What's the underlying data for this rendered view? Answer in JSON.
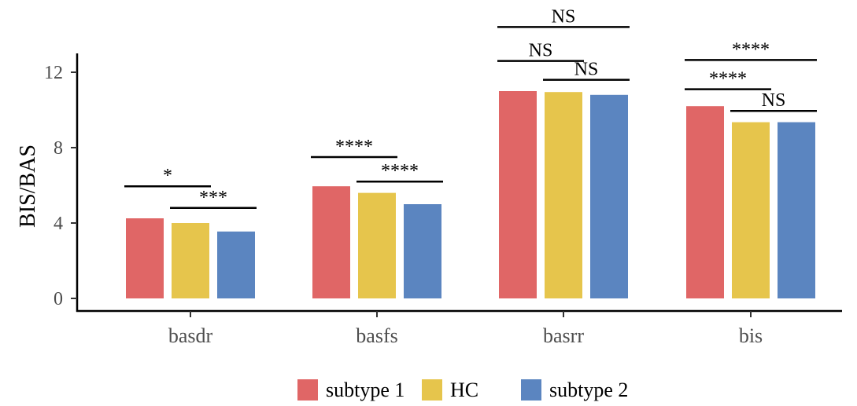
{
  "chart_data": {
    "type": "bar",
    "title": "",
    "xlabel": "",
    "ylabel": "BIS/BAS",
    "ylim": [
      0,
      13
    ],
    "yticks": [
      0,
      4,
      8,
      12
    ],
    "grid": false,
    "legend_position": "bottom",
    "categories": [
      "basdr",
      "basfs",
      "basrr",
      "bis"
    ],
    "series": [
      {
        "name": "subtype 1",
        "color": "#E06666",
        "values": [
          4.25,
          5.95,
          11.0,
          10.2
        ]
      },
      {
        "name": "HC",
        "color": "#E6C54C",
        "values": [
          4.0,
          5.6,
          10.95,
          9.35
        ]
      },
      {
        "name": "subtype 2",
        "color": "#5B85C0",
        "values": [
          3.55,
          5.0,
          10.8,
          9.35
        ]
      }
    ],
    "significance": [
      {
        "category": 0,
        "from": 0,
        "to": 1,
        "label": "*",
        "y": 5.95
      },
      {
        "category": 0,
        "from": 1,
        "to": 2,
        "label": "***",
        "y": 4.8
      },
      {
        "category": 1,
        "from": 0,
        "to": 1,
        "label": "****",
        "y": 7.5
      },
      {
        "category": 1,
        "from": 1,
        "to": 2,
        "label": "****",
        "y": 6.2
      },
      {
        "category": 2,
        "from": 0,
        "to": 1,
        "label": "NS",
        "y": 12.6
      },
      {
        "category": 2,
        "from": 1,
        "to": 2,
        "label": "NS",
        "y": 11.6
      },
      {
        "category": 2,
        "from": 0,
        "to": 2,
        "label": "NS",
        "y": 14.4
      },
      {
        "category": 3,
        "from": 0,
        "to": 1,
        "label": "****",
        "y": 11.1
      },
      {
        "category": 3,
        "from": 1,
        "to": 2,
        "label": "NS",
        "y": 9.95
      },
      {
        "category": 3,
        "from": 0,
        "to": 2,
        "label": "****",
        "y": 12.65
      }
    ]
  }
}
